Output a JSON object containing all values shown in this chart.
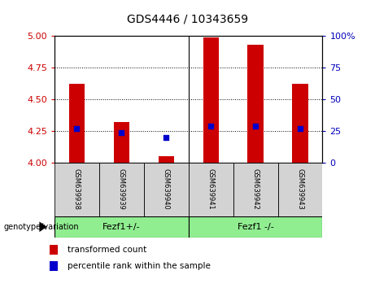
{
  "title": "GDS4446 / 10343659",
  "samples": [
    "GSM639938",
    "GSM639939",
    "GSM639940",
    "GSM639941",
    "GSM639942",
    "GSM639943"
  ],
  "transformed_counts": [
    4.62,
    4.32,
    4.05,
    4.99,
    4.93,
    4.62
  ],
  "percentile_ranks": [
    27,
    24,
    20,
    29,
    29,
    27
  ],
  "ylim_left": [
    4.0,
    5.0
  ],
  "ylim_right": [
    0,
    100
  ],
  "yticks_left": [
    4.0,
    4.25,
    4.5,
    4.75,
    5.0
  ],
  "yticks_right": [
    0,
    25,
    50,
    75,
    100
  ],
  "bar_color": "#cc0000",
  "marker_color": "#0000cc",
  "group_labels": [
    "Fezf1+/-",
    "Fezf1 -/-"
  ],
  "group_color": "#90ee90",
  "group_label_text": "genotype/variation",
  "legend_items": [
    {
      "label": "transformed count",
      "color": "#cc0000"
    },
    {
      "label": "percentile rank within the sample",
      "color": "#0000cc"
    }
  ],
  "background_color": "#ffffff",
  "left_tick_color": "#cc0000",
  "right_tick_color": "#0000bb",
  "bar_bottom": 4.0,
  "percentile_scale_factor": 0.01,
  "xlabel_bg": "#d3d3d3",
  "right_axis_labels": [
    "0",
    "25",
    "50",
    "75",
    "100%"
  ]
}
